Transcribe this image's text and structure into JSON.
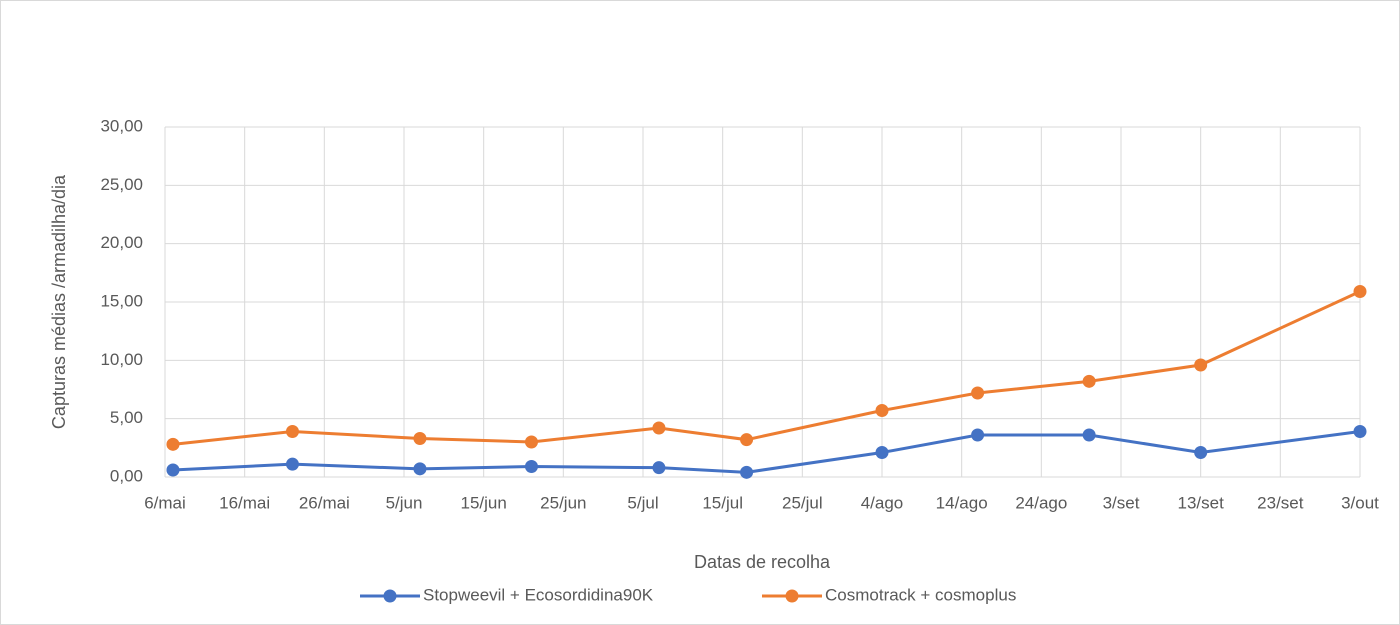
{
  "chart_data": {
    "type": "line",
    "y_label": "Capturas médias /armadilha/dia",
    "x_label": "Datas de recolha",
    "x": [
      1,
      16,
      32,
      46,
      62,
      73,
      90,
      102,
      116,
      130,
      150
    ],
    "series": [
      {
        "name": "Stopweevil + Ecosordidina90K",
        "color": "#4472c4",
        "values": [
          0.6,
          1.1,
          0.7,
          0.9,
          0.8,
          0.4,
          2.1,
          3.6,
          3.6,
          2.1,
          3.9
        ]
      },
      {
        "name": "Cosmotrack + cosmoplus",
        "color": "#ed7d31",
        "values": [
          2.8,
          3.9,
          3.3,
          3.0,
          4.2,
          3.2,
          5.7,
          7.2,
          8.2,
          9.6,
          15.9
        ]
      }
    ],
    "xlim": [
      0,
      150
    ],
    "xticks": [
      {
        "value": 0,
        "label": "6/mai"
      },
      {
        "value": 10,
        "label": "16/mai"
      },
      {
        "value": 20,
        "label": "26/mai"
      },
      {
        "value": 30,
        "label": "5/jun"
      },
      {
        "value": 40,
        "label": "15/jun"
      },
      {
        "value": 50,
        "label": "25/jun"
      },
      {
        "value": 60,
        "label": "5/jul"
      },
      {
        "value": 70,
        "label": "15/jul"
      },
      {
        "value": 80,
        "label": "25/jul"
      },
      {
        "value": 90,
        "label": "4/ago"
      },
      {
        "value": 100,
        "label": "14/ago"
      },
      {
        "value": 110,
        "label": "24/ago"
      },
      {
        "value": 120,
        "label": "3/set"
      },
      {
        "value": 130,
        "label": "13/set"
      },
      {
        "value": 140,
        "label": "23/set"
      },
      {
        "value": 150,
        "label": "3/out"
      }
    ],
    "ylim": [
      0,
      30
    ],
    "yticks": [
      {
        "value": 0,
        "label": "0,00"
      },
      {
        "value": 5,
        "label": "5,00"
      },
      {
        "value": 10,
        "label": "10,00"
      },
      {
        "value": 15,
        "label": "15,00"
      },
      {
        "value": 20,
        "label": "20,00"
      },
      {
        "value": 25,
        "label": "25,00"
      },
      {
        "value": 30,
        "label": "30,00"
      }
    ],
    "grid": true,
    "legend": "bottom"
  }
}
